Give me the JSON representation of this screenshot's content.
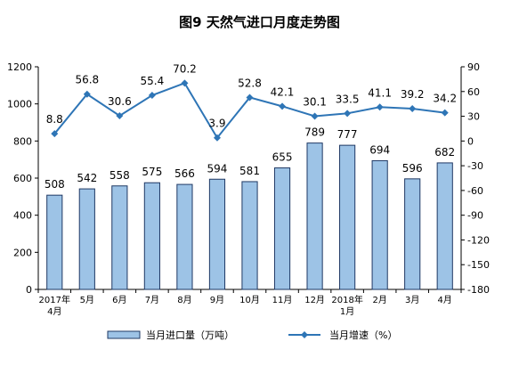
{
  "chart_data": {
    "type": "bar+line",
    "title": "图9 天然气进口月度走势图",
    "categories": [
      [
        "2017年",
        "4月"
      ],
      [
        "5月"
      ],
      [
        "6月"
      ],
      [
        "7月"
      ],
      [
        "8月"
      ],
      [
        "9月"
      ],
      [
        "10月"
      ],
      [
        "11月"
      ],
      [
        "12月"
      ],
      [
        "2018年",
        "1月"
      ],
      [
        "2月"
      ],
      [
        "3月"
      ],
      [
        "4月"
      ]
    ],
    "series": [
      {
        "name": "当月进口量（万吨）",
        "type": "bar",
        "axis": "left",
        "color": "#9dc3e6",
        "values": [
          508,
          542,
          558,
          575,
          566,
          594,
          581,
          655,
          789,
          777,
          694,
          596,
          682
        ]
      },
      {
        "name": "当月增速（%）",
        "type": "line",
        "axis": "right",
        "color": "#2e75b6",
        "values": [
          8.8,
          56.8,
          30.6,
          55.4,
          70.2,
          3.9,
          52.8,
          42.1,
          30.1,
          33.5,
          41.1,
          39.2,
          34.2
        ]
      }
    ],
    "y_left": {
      "min": 0,
      "max": 1200,
      "ticks": [
        0,
        200,
        400,
        600,
        800,
        1000,
        1200
      ]
    },
    "y_right": {
      "min": -180,
      "max": 90,
      "ticks": [
        -180,
        -150,
        -120,
        -90,
        -60,
        -30,
        0,
        30,
        60,
        90
      ]
    },
    "grid": false,
    "legend_position": "bottom"
  }
}
